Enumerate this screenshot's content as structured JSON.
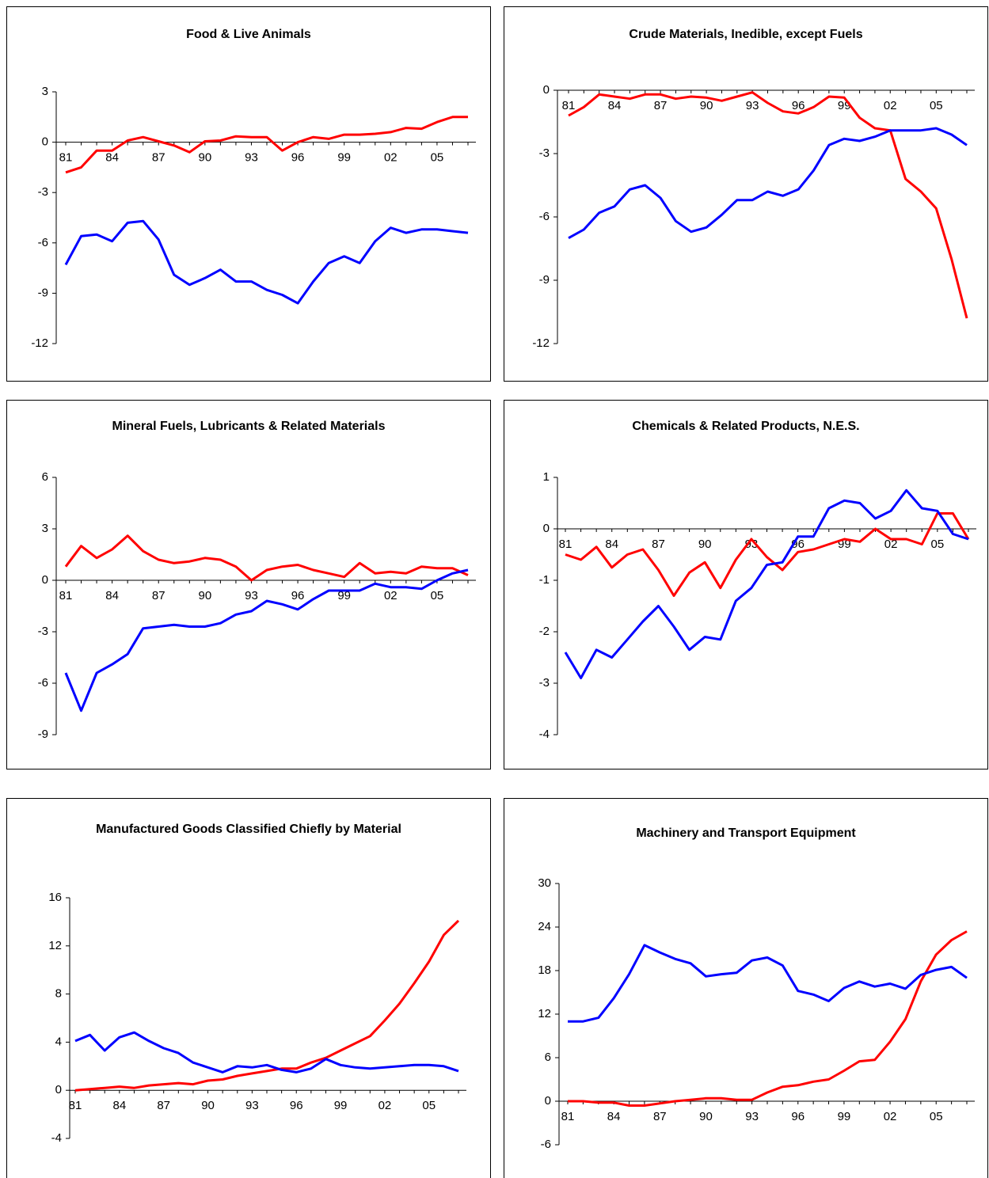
{
  "chart_data": [
    {
      "type": "line",
      "title": "Food & Live Animals",
      "categories": [
        "81",
        null,
        null,
        "84",
        null,
        null,
        "87",
        null,
        null,
        "90",
        null,
        null,
        "93",
        null,
        null,
        "96",
        null,
        null,
        "99",
        null,
        null,
        "02",
        null,
        null,
        "05",
        null,
        null
      ],
      "ylim": [
        -12,
        3
      ],
      "yticks": [
        -12,
        -9,
        -6,
        -3,
        0,
        3
      ],
      "series": [
        {
          "color": "#ff0000",
          "values": [
            -1.8,
            -1.5,
            -0.5,
            -0.5,
            0.1,
            0.3,
            0.05,
            -0.2,
            -0.6,
            0.05,
            0.1,
            0.35,
            0.3,
            0.3,
            -0.5,
            0,
            0.3,
            0.2,
            0.45,
            0.45,
            0.5,
            0.6,
            0.85,
            0.8,
            1.2,
            1.5,
            1.5
          ]
        },
        {
          "color": "#0000ff",
          "values": [
            -7.3,
            -5.6,
            -5.5,
            -5.9,
            -4.8,
            -4.7,
            -5.8,
            -7.9,
            -8.5,
            -8.1,
            -7.6,
            -8.3,
            -8.3,
            -8.8,
            -9.1,
            -9.6,
            -8.3,
            -7.2,
            -6.8,
            -7.2,
            -5.9,
            -5.1,
            -5.4,
            -5.2,
            -5.2,
            -5.3,
            -5.4
          ]
        }
      ]
    },
    {
      "type": "line",
      "title": "Crude Materials, Inedible, except Fuels",
      "categories": [
        "81",
        null,
        null,
        "84",
        null,
        null,
        "87",
        null,
        null,
        "90",
        null,
        null,
        "93",
        null,
        null,
        "96",
        null,
        null,
        "99",
        null,
        null,
        "02",
        null,
        null,
        "05",
        null,
        null
      ],
      "ylim": [
        -12,
        0
      ],
      "yticks": [
        -12,
        -9,
        -6,
        -3,
        0
      ],
      "series": [
        {
          "color": "#ff0000",
          "values": [
            -1.2,
            -0.8,
            -0.2,
            -0.3,
            -0.4,
            -0.2,
            -0.2,
            -0.4,
            -0.3,
            -0.35,
            -0.5,
            -0.3,
            -0.1,
            -0.6,
            -1.0,
            -1.1,
            -0.8,
            -0.3,
            -0.35,
            -1.3,
            -1.8,
            -1.9,
            -4.2,
            -4.8,
            -5.6,
            -8.0,
            -10.8
          ]
        },
        {
          "color": "#0000ff",
          "values": [
            -7.0,
            -6.6,
            -5.8,
            -5.5,
            -4.7,
            -4.5,
            -5.1,
            -6.2,
            -6.7,
            -6.5,
            -5.9,
            -5.2,
            -5.2,
            -4.8,
            -5.0,
            -4.7,
            -3.8,
            -2.6,
            -2.3,
            -2.4,
            -2.2,
            -1.9,
            -1.9,
            -1.9,
            -1.8,
            -2.1,
            -2.6
          ]
        }
      ]
    },
    {
      "type": "line",
      "title": "Mineral Fuels, Lubricants & Related Materials",
      "categories": [
        "81",
        null,
        null,
        "84",
        null,
        null,
        "87",
        null,
        null,
        "90",
        null,
        null,
        "93",
        null,
        null,
        "96",
        null,
        null,
        "99",
        null,
        null,
        "02",
        null,
        null,
        "05",
        null,
        null
      ],
      "ylim": [
        -9,
        6
      ],
      "yticks": [
        -9,
        -6,
        -3,
        0,
        3,
        6
      ],
      "series": [
        {
          "color": "#ff0000",
          "values": [
            0.8,
            2.0,
            1.3,
            1.8,
            2.6,
            1.7,
            1.2,
            1.0,
            1.1,
            1.3,
            1.2,
            0.8,
            0.0,
            0.6,
            0.8,
            0.9,
            0.6,
            0.4,
            0.2,
            1.0,
            0.4,
            0.5,
            0.4,
            0.8,
            0.7,
            0.7,
            0.3
          ]
        },
        {
          "color": "#0000ff",
          "values": [
            -5.4,
            -7.6,
            -5.4,
            -4.9,
            -4.3,
            -2.8,
            -2.7,
            -2.6,
            -2.7,
            -2.7,
            -2.5,
            -2.0,
            -1.8,
            -1.2,
            -1.4,
            -1.7,
            -1.1,
            -0.6,
            -0.6,
            -0.6,
            -0.2,
            -0.4,
            -0.4,
            -0.5,
            0,
            0.4,
            0.6
          ]
        }
      ]
    },
    {
      "type": "line",
      "title": "Chemicals & Related Products, N.E.S.",
      "categories": [
        "81",
        null,
        null,
        "84",
        null,
        null,
        "87",
        null,
        null,
        "90",
        null,
        null,
        "93",
        null,
        null,
        "96",
        null,
        null,
        "99",
        null,
        null,
        "02",
        null,
        null,
        "05",
        null,
        null
      ],
      "ylim": [
        -4,
        1
      ],
      "yticks": [
        -4,
        -3,
        -2,
        -1,
        0,
        1
      ],
      "series": [
        {
          "color": "#ff0000",
          "values": [
            -0.5,
            -0.6,
            -0.35,
            -0.75,
            -0.5,
            -0.4,
            -0.8,
            -1.3,
            -0.85,
            -0.65,
            -1.15,
            -0.6,
            -0.2,
            -0.55,
            -0.8,
            -0.45,
            -0.4,
            -0.3,
            -0.2,
            -0.25,
            0,
            -0.2,
            -0.2,
            -0.3,
            0.3,
            0.3,
            -0.2
          ]
        },
        {
          "color": "#0000ff",
          "values": [
            -2.4,
            -2.9,
            -2.35,
            -2.5,
            -2.15,
            -1.8,
            -1.5,
            -1.9,
            -2.35,
            -2.1,
            -2.15,
            -1.4,
            -1.15,
            -0.7,
            -0.65,
            -0.15,
            -0.15,
            0.4,
            0.55,
            0.5,
            0.2,
            0.35,
            0.75,
            0.4,
            0.35,
            -0.1,
            -0.2
          ]
        }
      ]
    },
    {
      "type": "line",
      "title": "Manufactured Goods Classified Chiefly by Material",
      "categories": [
        "81",
        null,
        null,
        "84",
        null,
        null,
        "87",
        null,
        null,
        "90",
        null,
        null,
        "93",
        null,
        null,
        "96",
        null,
        null,
        "99",
        null,
        null,
        "02",
        null,
        null,
        "05",
        null,
        null
      ],
      "ylim": [
        -4,
        16
      ],
      "yticks": [
        -4,
        0,
        4,
        8,
        12,
        16
      ],
      "series": [
        {
          "color": "#ff0000",
          "values": [
            0,
            0.1,
            0.2,
            0.3,
            0.2,
            0.4,
            0.5,
            0.6,
            0.5,
            0.8,
            0.9,
            1.2,
            1.4,
            1.6,
            1.8,
            1.8,
            2.3,
            2.7,
            3.3,
            3.9,
            4.5,
            5.8,
            7.2,
            8.9,
            10.7,
            12.9,
            14.1
          ]
        },
        {
          "color": "#0000ff",
          "values": [
            4.1,
            4.6,
            3.3,
            4.4,
            4.8,
            4.1,
            3.5,
            3.1,
            2.3,
            1.9,
            1.5,
            2.0,
            1.9,
            2.1,
            1.7,
            1.5,
            1.8,
            2.6,
            2.1,
            1.9,
            1.8,
            1.9,
            2.0,
            2.1,
            2.1,
            2.0,
            1.6
          ]
        }
      ]
    },
    {
      "type": "line",
      "title": "Machinery and Transport Equipment",
      "categories": [
        "81",
        null,
        null,
        "84",
        null,
        null,
        "87",
        null,
        null,
        "90",
        null,
        null,
        "93",
        null,
        null,
        "96",
        null,
        null,
        "99",
        null,
        null,
        "02",
        null,
        null,
        "05",
        null,
        null
      ],
      "ylim": [
        -6,
        30
      ],
      "yticks": [
        -6,
        0,
        6,
        12,
        18,
        24,
        30
      ],
      "series": [
        {
          "color": "#ff0000",
          "values": [
            0,
            0,
            -0.2,
            -0.2,
            -0.6,
            -0.6,
            -0.3,
            0,
            0.2,
            0.4,
            0.4,
            0.2,
            0.2,
            1.2,
            2.0,
            2.2,
            2.7,
            3.0,
            4.2,
            5.5,
            5.7,
            8.2,
            11.3,
            16.5,
            20.2,
            22.2,
            23.4
          ]
        },
        {
          "color": "#0000ff",
          "values": [
            11,
            11,
            11.5,
            14.2,
            17.5,
            21.5,
            20.5,
            19.6,
            19.0,
            17.2,
            17.5,
            17.7,
            19.4,
            19.8,
            18.7,
            15.2,
            14.7,
            13.8,
            15.6,
            16.5,
            15.8,
            16.2,
            15.5,
            17.4,
            18.1,
            18.5,
            17.0
          ]
        }
      ]
    }
  ]
}
